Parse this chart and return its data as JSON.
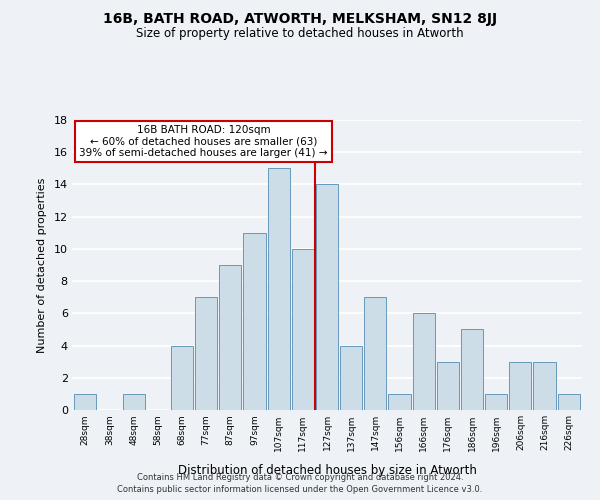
{
  "title": "16B, BATH ROAD, ATWORTH, MELKSHAM, SN12 8JJ",
  "subtitle": "Size of property relative to detached houses in Atworth",
  "xlabel": "Distribution of detached houses by size in Atworth",
  "ylabel": "Number of detached properties",
  "bar_labels": [
    "28sqm",
    "38sqm",
    "48sqm",
    "58sqm",
    "68sqm",
    "77sqm",
    "87sqm",
    "97sqm",
    "107sqm",
    "117sqm",
    "127sqm",
    "137sqm",
    "147sqm",
    "156sqm",
    "166sqm",
    "176sqm",
    "186sqm",
    "196sqm",
    "206sqm",
    "216sqm",
    "226sqm"
  ],
  "bar_values": [
    1,
    0,
    1,
    0,
    4,
    7,
    9,
    11,
    15,
    10,
    14,
    4,
    7,
    1,
    6,
    3,
    5,
    1,
    3,
    3,
    1
  ],
  "bar_color": "#ccdde8",
  "bar_edge_color": "#6699bb",
  "vline_x": 9.5,
  "vline_color": "#cc0000",
  "annotation_title": "16B BATH ROAD: 120sqm",
  "annotation_line1": "← 60% of detached houses are smaller (63)",
  "annotation_line2": "39% of semi-detached houses are larger (41) →",
  "annotation_box_color": "#cc0000",
  "ylim": [
    0,
    18
  ],
  "yticks": [
    0,
    2,
    4,
    6,
    8,
    10,
    12,
    14,
    16,
    18
  ],
  "footer1": "Contains HM Land Registry data © Crown copyright and database right 2024.",
  "footer2": "Contains public sector information licensed under the Open Government Licence v3.0.",
  "bg_color": "#eef2f7",
  "grid_color": "#ffffff"
}
